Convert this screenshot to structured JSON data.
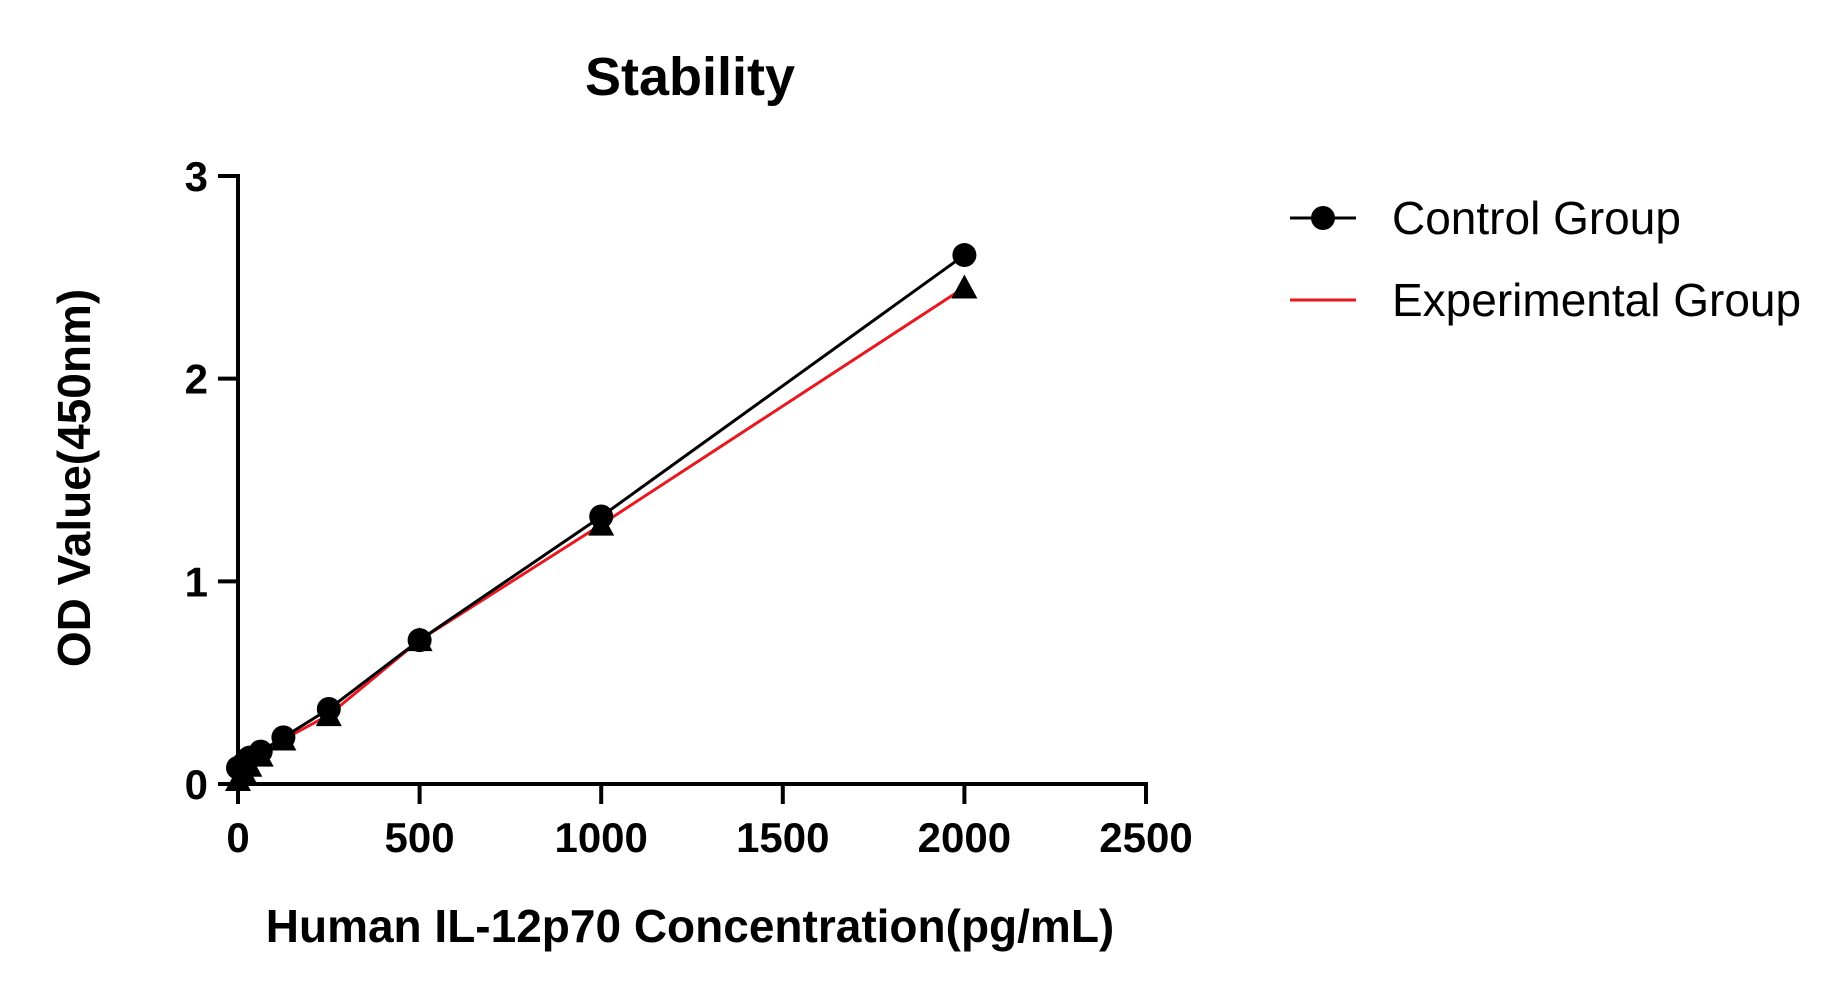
{
  "chart_data": {
    "type": "line",
    "title": "Stability",
    "xlabel": "Human IL-12p70 Concentration(pg/mL)",
    "ylabel": "OD Value(450nm)",
    "xlim": [
      0,
      2500
    ],
    "ylim": [
      0,
      3
    ],
    "x_ticks": [
      "0",
      "500",
      "1000",
      "1500",
      "2000",
      "2500"
    ],
    "y_ticks": [
      "0",
      "1",
      "2",
      "3"
    ],
    "grid": false,
    "legend_position": "right",
    "series": [
      {
        "name": "Control Group",
        "marker": "circle",
        "color": "#000000",
        "x": [
          0,
          15.6,
          31.25,
          62.5,
          125,
          250,
          500,
          1000,
          2000
        ],
        "y": [
          0.08,
          0.1,
          0.13,
          0.16,
          0.23,
          0.37,
          0.71,
          1.32,
          2.61
        ]
      },
      {
        "name": "Experimental Group",
        "marker": "triangle",
        "color": "#e8191e",
        "x": [
          0,
          15.6,
          31.25,
          62.5,
          125,
          250,
          500,
          1000,
          2000
        ],
        "y": [
          0.02,
          0.06,
          0.09,
          0.14,
          0.22,
          0.34,
          0.71,
          1.28,
          2.45
        ]
      }
    ]
  }
}
